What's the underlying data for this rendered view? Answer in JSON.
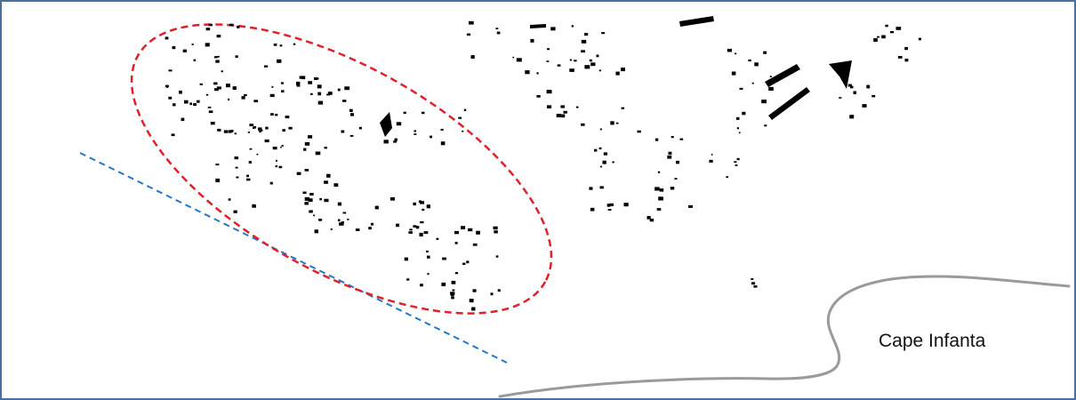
{
  "map": {
    "place_label": "Cape Infanta",
    "colors": {
      "frame": "#4a6fa5",
      "coastline": "#9a9a9a",
      "dots": "#000000",
      "ellipse_outline": "#e0202a",
      "dashed_line": "#1f78c8"
    }
  }
}
